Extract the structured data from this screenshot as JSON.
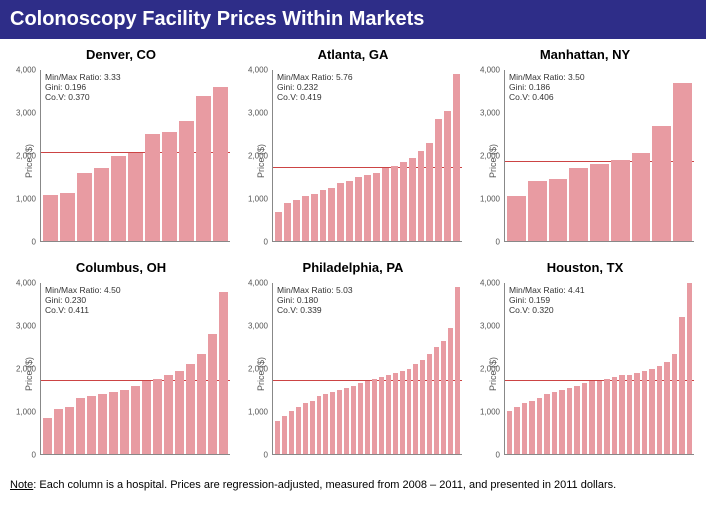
{
  "title": "Colonoscopy Facility Prices Within Markets",
  "note": "Note: Each column is a hospital. Prices are regression-adjusted, measured from 2008 – 2011, and presented in 2011 dollars.",
  "chart_style": {
    "bar_color": "#e89ba2",
    "ref_line_color": "#c44",
    "title_bg": "#2e2d88",
    "title_fg": "#ffffff",
    "axis_color": "#888888",
    "ymax": 4000,
    "ytick_step": 1000,
    "yticks": [
      "0",
      "1,000",
      "2,000",
      "3,000",
      "4,000"
    ],
    "ylabel": "Price ($)"
  },
  "panels": [
    {
      "title": "Denver, CO",
      "stats": {
        "minmax": "Min/Max Ratio: 3.33",
        "gini": "Gini: 0.196",
        "cov": "Co.V: 0.370"
      },
      "ref": 2050,
      "values": [
        1080,
        1120,
        1600,
        1700,
        2000,
        2050,
        2500,
        2550,
        2800,
        3400,
        3600
      ]
    },
    {
      "title": "Atlanta, GA",
      "stats": {
        "minmax": "Min/Max Ratio: 5.76",
        "gini": "Gini: 0.232",
        "cov": "Co.V: 0.419"
      },
      "ref": 1700,
      "values": [
        680,
        900,
        950,
        1050,
        1100,
        1200,
        1250,
        1350,
        1400,
        1500,
        1550,
        1600,
        1700,
        1750,
        1850,
        1950,
        2100,
        2300,
        2850,
        3050,
        3900
      ]
    },
    {
      "title": "Manhattan, NY",
      "stats": {
        "minmax": "Min/Max Ratio: 3.50",
        "gini": "Gini: 0.186",
        "cov": "Co.V: 0.406"
      },
      "ref": 1850,
      "values": [
        1050,
        1400,
        1450,
        1700,
        1800,
        1900,
        2050,
        2700,
        3700
      ]
    },
    {
      "title": "Columbus, OH",
      "stats": {
        "minmax": "Min/Max Ratio: 4.50",
        "gini": "Gini: 0.230",
        "cov": "Co.V: 0.411"
      },
      "ref": 1700,
      "values": [
        850,
        1050,
        1100,
        1300,
        1350,
        1400,
        1450,
        1500,
        1600,
        1700,
        1750,
        1850,
        1950,
        2100,
        2350,
        2800,
        3800
      ]
    },
    {
      "title": "Philadelphia, PA",
      "stats": {
        "minmax": "Min/Max Ratio: 5.03",
        "gini": "Gini: 0.180",
        "cov": "Co.V: 0.339"
      },
      "ref": 1700,
      "values": [
        780,
        900,
        1000,
        1100,
        1200,
        1250,
        1350,
        1400,
        1450,
        1500,
        1550,
        1600,
        1650,
        1700,
        1750,
        1800,
        1850,
        1900,
        1950,
        2000,
        2100,
        2200,
        2350,
        2500,
        2650,
        2950,
        3900
      ]
    },
    {
      "title": "Houston, TX",
      "stats": {
        "minmax": "Min/Max Ratio: 4.41",
        "gini": "Gini: 0.159",
        "cov": "Co.V: 0.320"
      },
      "ref": 1700,
      "values": [
        1000,
        1100,
        1200,
        1250,
        1300,
        1400,
        1450,
        1500,
        1550,
        1600,
        1650,
        1700,
        1700,
        1750,
        1800,
        1850,
        1850,
        1900,
        1950,
        2000,
        2050,
        2150,
        2350,
        3200,
        4400
      ]
    }
  ]
}
